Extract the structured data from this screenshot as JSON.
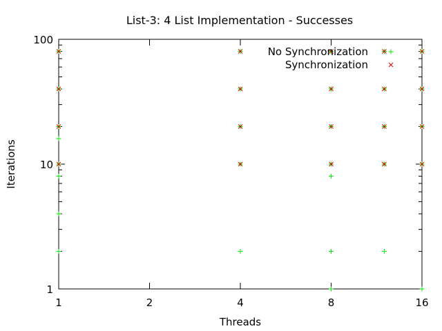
{
  "chart_data": {
    "type": "scatter",
    "title": "List-3: 4 List Implementation - Successes",
    "xlabel": "Threads",
    "ylabel": "Iterations",
    "x_scale": "log2",
    "y_scale": "log10",
    "xlim": [
      1,
      16
    ],
    "ylim": [
      1,
      100
    ],
    "x_ticks": [
      1,
      2,
      4,
      8,
      16
    ],
    "x_tick_labels": [
      "1",
      "2",
      "4",
      "8",
      "16"
    ],
    "y_ticks": [
      1,
      10,
      100
    ],
    "y_tick_labels": [
      "1",
      "10",
      "100"
    ],
    "grid": false,
    "legend_position": "top-right",
    "series": [
      {
        "name": "No Synchronization",
        "marker": "plus",
        "color": "#00ee00",
        "points": [
          [
            1,
            2
          ],
          [
            1,
            4
          ],
          [
            1,
            8
          ],
          [
            1,
            16
          ],
          [
            1,
            10
          ],
          [
            1,
            20
          ],
          [
            1,
            40
          ],
          [
            1,
            80
          ],
          [
            4,
            2
          ],
          [
            4,
            10
          ],
          [
            4,
            20
          ],
          [
            4,
            40
          ],
          [
            4,
            80
          ],
          [
            8,
            1
          ],
          [
            8,
            2
          ],
          [
            8,
            8
          ],
          [
            8,
            10
          ],
          [
            8,
            20
          ],
          [
            8,
            40
          ],
          [
            8,
            80
          ],
          [
            12,
            2
          ],
          [
            12,
            10
          ],
          [
            12,
            20
          ],
          [
            12,
            40
          ],
          [
            12,
            80
          ],
          [
            16,
            1
          ],
          [
            16,
            10
          ],
          [
            16,
            20
          ],
          [
            16,
            40
          ],
          [
            16,
            80
          ]
        ]
      },
      {
        "name": "Synchronization",
        "marker": "cross",
        "color": "#dd0000",
        "points": [
          [
            1,
            10
          ],
          [
            1,
            20
          ],
          [
            1,
            40
          ],
          [
            1,
            80
          ],
          [
            4,
            10
          ],
          [
            4,
            20
          ],
          [
            4,
            40
          ],
          [
            4,
            80
          ],
          [
            8,
            10
          ],
          [
            8,
            20
          ],
          [
            8,
            40
          ],
          [
            8,
            80
          ],
          [
            12,
            10
          ],
          [
            12,
            20
          ],
          [
            12,
            40
          ],
          [
            12,
            80
          ],
          [
            16,
            10
          ],
          [
            16,
            20
          ],
          [
            16,
            40
          ],
          [
            16,
            80
          ]
        ]
      }
    ]
  }
}
